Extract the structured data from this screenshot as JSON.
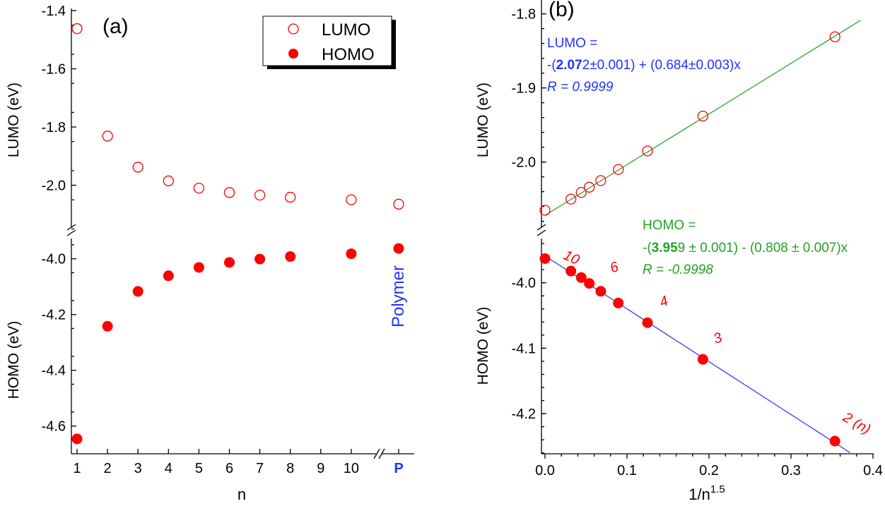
{
  "chart_data": [
    {
      "type": "scatter",
      "panel_label": "(a)",
      "xlabel": "n",
      "x_tick_labels": [
        "1",
        "2",
        "3",
        "4",
        "5",
        "6",
        "7",
        "8",
        "9",
        "10",
        "P"
      ],
      "x_break": "between 10 and P",
      "categories": [
        "1",
        "2",
        "3",
        "4",
        "5",
        "6",
        "7",
        "8",
        "10",
        "P"
      ],
      "annotation": "Polymer",
      "legend": {
        "placement": "top-right",
        "entries": [
          "LUMO",
          "HOMO"
        ]
      },
      "upper_axis": {
        "ylabel": "LUMO (eV)",
        "ylim": [
          -2.15,
          -1.4
        ],
        "ticks": [
          "-1.4",
          "-1.6",
          "-1.8",
          "-2.0"
        ]
      },
      "lower_axis": {
        "ylabel": "HOMO (eV)",
        "ylim": [
          -4.7,
          -3.92
        ],
        "ticks": [
          "-4.0",
          "-4.2",
          "-4.4",
          "-4.6"
        ]
      },
      "series": [
        {
          "name": "LUMO",
          "marker": "open-circle",
          "color": "#ff0000",
          "values": [
            -1.462,
            -1.831,
            -1.938,
            -1.985,
            -2.01,
            -2.025,
            -2.034,
            -2.041,
            -2.05,
            -2.065
          ]
        },
        {
          "name": "HOMO",
          "marker": "filled-circle",
          "color": "#ff0000",
          "values": [
            -4.646,
            -4.242,
            -4.117,
            -4.061,
            -4.031,
            -4.013,
            -4.001,
            -3.992,
            -3.982,
            -3.963
          ]
        }
      ]
    },
    {
      "type": "scatter",
      "panel_label": "(b)",
      "xlabel": "1/n",
      "xlabel_sup": "1.5",
      "xlim": [
        0.0,
        0.4
      ],
      "x_ticks": [
        "0.0",
        "0.1",
        "0.2",
        "0.3",
        "0.4"
      ],
      "x": [
        0.3536,
        0.1925,
        0.125,
        0.0894,
        0.068,
        0.054,
        0.0442,
        0.0316,
        0.0
      ],
      "n_labels": [
        "2 (n)",
        "3",
        "4",
        "",
        "6",
        "",
        "",
        "10",
        ""
      ],
      "upper_axis": {
        "ylabel": "LUMO (eV)",
        "ylim": [
          -2.09,
          -1.78
        ],
        "ticks": [
          "-1.8",
          "-1.9",
          "-2.0"
        ]
      },
      "lower_axis": {
        "ylabel": "HOMO (eV)",
        "ylim": [
          -4.26,
          -3.93
        ],
        "ticks": [
          "-4.0",
          "-4.1",
          "-4.2"
        ]
      },
      "series": [
        {
          "name": "LUMO",
          "marker": "open-circle",
          "color": "#ff0000",
          "values": [
            -1.831,
            -1.938,
            -1.985,
            -2.01,
            -2.025,
            -2.034,
            -2.041,
            -2.05,
            -2.065
          ]
        },
        {
          "name": "HOMO",
          "marker": "filled-circle",
          "color": "#ff0000",
          "values": [
            -4.242,
            -4.117,
            -4.061,
            -4.031,
            -4.013,
            -4.001,
            -3.992,
            -3.982,
            -3.963
          ]
        }
      ],
      "fits": [
        {
          "name": "LUMO",
          "color": "#22a322",
          "intercept": -2.072,
          "slope": 0.684,
          "x_range": [
            0.0,
            0.385
          ]
        },
        {
          "name": "HOMO",
          "color": "#2233ff",
          "intercept": -3.959,
          "slope": -0.808,
          "x_range": [
            0.0,
            0.372
          ]
        }
      ],
      "equations": {
        "lumo": {
          "color": "#2233ff",
          "line1": "LUMO =",
          "pre": "-(",
          "bold": "2.07",
          "post": "2±0.001) + (0.684±0.003)x",
          "r": "R = 0.9999"
        },
        "homo": {
          "color": "#22a322",
          "line1": "HOMO =",
          "pre": "-(",
          "bold": "3.95",
          "post": "9 ± 0.001) - (0.808 ± 0.007)x",
          "r": "R = -0.9998"
        }
      }
    }
  ],
  "colors": {
    "marker": "#ff0000",
    "annotation_blue": "#2233ff",
    "axis": "#000000"
  }
}
